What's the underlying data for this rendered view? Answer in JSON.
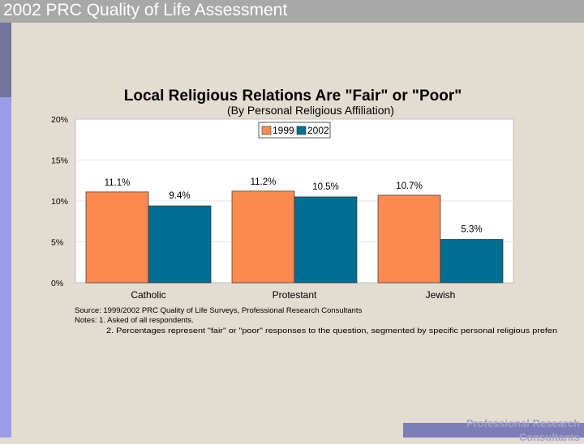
{
  "header": {
    "title": "2002 PRC Quality of Life Assessment"
  },
  "footer": {
    "brand_line1": "Professional Research",
    "brand_line2": "Consultants"
  },
  "chart_data": {
    "type": "bar",
    "title": "Local Religious Relations Are \"Fair\" or \"Poor\"",
    "subtitle": "(By Personal Religious Affiliation)",
    "categories": [
      "Catholic",
      "Protestant",
      "Jewish"
    ],
    "series": [
      {
        "name": "1999",
        "values": [
          11.1,
          11.2,
          10.7
        ],
        "labels": [
          "11.1%",
          "11.2%",
          "10.7%"
        ],
        "color": "#fb8a50"
      },
      {
        "name": "2002",
        "values": [
          9.4,
          10.5,
          5.3
        ],
        "labels": [
          "9.4%",
          "10.5%",
          "5.3%"
        ],
        "color": "#006e92"
      }
    ],
    "yticks": [
      "0%",
      "5%",
      "10%",
      "15%",
      "20%"
    ],
    "ylim": [
      0,
      20
    ],
    "grid": true,
    "legend": "top-center",
    "notes": [
      "Source: 1999/2002 PRC Quality of Life Surveys, Professional Research Consultants",
      "Notes:  1. Asked of all respondents.",
      "2.  Percentages represent \"fair\" or \"poor\" responses to the question, segmented by specific personal religious prefen"
    ]
  }
}
